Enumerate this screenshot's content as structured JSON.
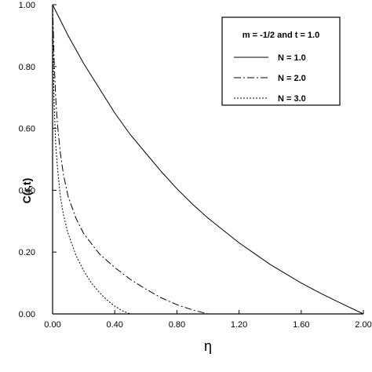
{
  "chart_data": {
    "type": "line",
    "xlabel": "η",
    "ylabel": "C(r,t)",
    "xlim": [
      0,
      2.0
    ],
    "ylim": [
      0,
      1.0
    ],
    "x_ticks": [
      "0.00",
      "0.40",
      "0.80",
      "1.20",
      "1.60",
      "2.00"
    ],
    "y_ticks": [
      "0.00",
      "0.20",
      "0.40",
      "0.60",
      "0.80",
      "1.00"
    ],
    "grid": false,
    "legend": {
      "title": "m = -1/2 and t = 1.0",
      "placement": "top-right"
    },
    "series": [
      {
        "name": "N = 1.0",
        "style": "solid",
        "x": [
          0,
          0.1,
          0.2,
          0.3,
          0.4,
          0.5,
          0.6,
          0.7,
          0.8,
          0.9,
          1.0,
          1.1,
          1.2,
          1.3,
          1.4,
          1.5,
          1.6,
          1.7,
          1.8,
          1.9,
          2.0
        ],
        "y": [
          1.0,
          0.9,
          0.81,
          0.73,
          0.65,
          0.58,
          0.52,
          0.46,
          0.405,
          0.355,
          0.31,
          0.27,
          0.23,
          0.195,
          0.16,
          0.13,
          0.1,
          0.073,
          0.048,
          0.024,
          0.0
        ]
      },
      {
        "name": "N = 2.0",
        "style": "dashdot",
        "x": [
          0,
          0.01,
          0.02,
          0.03,
          0.05,
          0.07,
          0.1,
          0.15,
          0.2,
          0.3,
          0.4,
          0.5,
          0.6,
          0.7,
          0.8,
          0.9,
          1.0
        ],
        "y": [
          1.0,
          0.82,
          0.7,
          0.62,
          0.52,
          0.45,
          0.38,
          0.31,
          0.26,
          0.195,
          0.15,
          0.112,
          0.08,
          0.052,
          0.03,
          0.013,
          0.0
        ]
      },
      {
        "name": "N = 3.0",
        "style": "dotted",
        "x": [
          0,
          0.005,
          0.01,
          0.02,
          0.03,
          0.05,
          0.07,
          0.1,
          0.15,
          0.2,
          0.25,
          0.3,
          0.35,
          0.4,
          0.45,
          0.5
        ],
        "y": [
          1.0,
          0.8,
          0.68,
          0.55,
          0.48,
          0.38,
          0.32,
          0.26,
          0.19,
          0.14,
          0.1,
          0.07,
          0.045,
          0.025,
          0.01,
          0.0
        ]
      }
    ]
  }
}
